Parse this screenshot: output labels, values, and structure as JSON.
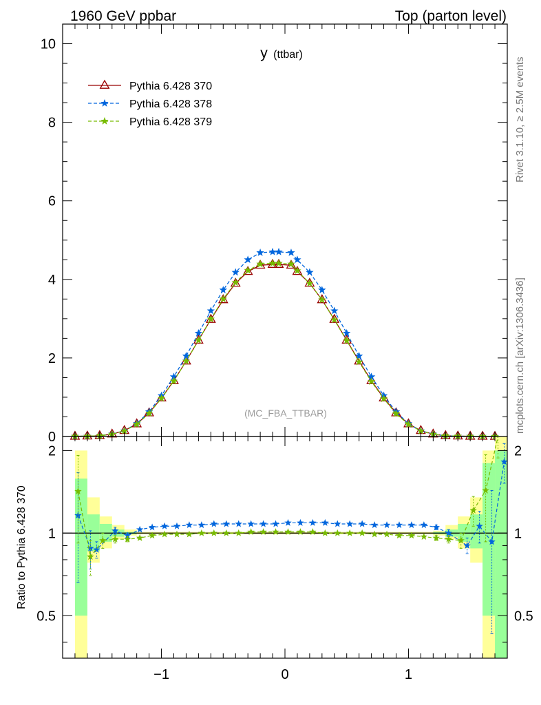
{
  "header": {
    "left": "1960 GeV ppbar",
    "right": "Top (parton level)"
  },
  "side_labels": {
    "rivet": "Rivet 3.1.10, ≥ 2.5M events",
    "mcplots": "mcplots.cern.ch [arXiv:1306.3436]"
  },
  "colors": {
    "series_370": "#990000",
    "series_378": "#0066dd",
    "series_379": "#77bb00",
    "band_yellow": "#ffff99",
    "band_green": "#99ff99"
  },
  "chart_data": [
    {
      "type": "line",
      "title": "y (ttbar)",
      "title_main": "y",
      "title_sub": "(ttbar)",
      "watermark": "(MC_FBA_TTBAR)",
      "xlim": [
        -1.8,
        1.8
      ],
      "ylim": [
        0,
        10.5
      ],
      "yticks": [
        0,
        2,
        4,
        6,
        8,
        10
      ],
      "legend_position": "top-left",
      "x": [
        -1.7,
        -1.6,
        -1.5,
        -1.4,
        -1.3,
        -1.2,
        -1.1,
        -1.0,
        -0.9,
        -0.8,
        -0.7,
        -0.6,
        -0.5,
        -0.4,
        -0.3,
        -0.2,
        -0.1,
        -0.05,
        0.05,
        0.1,
        0.2,
        0.3,
        0.4,
        0.5,
        0.6,
        0.7,
        0.8,
        0.9,
        1.0,
        1.1,
        1.2,
        1.3,
        1.4,
        1.5,
        1.6,
        1.7
      ],
      "series": [
        {
          "name": "Pythia 6.428 370",
          "marker": "open-triangle",
          "line": "solid",
          "values": [
            0.005,
            0.01,
            0.02,
            0.06,
            0.15,
            0.32,
            0.6,
            0.98,
            1.42,
            1.92,
            2.45,
            2.98,
            3.48,
            3.9,
            4.2,
            4.36,
            4.38,
            4.38,
            4.36,
            4.2,
            3.9,
            3.48,
            2.98,
            2.45,
            1.92,
            1.42,
            0.98,
            0.6,
            0.32,
            0.15,
            0.06,
            0.02,
            0.01,
            0.005,
            0.003,
            0.002
          ]
        },
        {
          "name": "Pythia 6.428 378",
          "marker": "star",
          "line": "dashed",
          "values": [
            0.006,
            0.009,
            0.018,
            0.061,
            0.146,
            0.328,
            0.63,
            1.04,
            1.52,
            2.05,
            2.63,
            3.2,
            3.73,
            4.18,
            4.5,
            4.68,
            4.7,
            4.7,
            4.68,
            4.5,
            4.18,
            3.73,
            3.2,
            2.63,
            2.05,
            1.52,
            1.04,
            0.63,
            0.328,
            0.146,
            0.061,
            0.018,
            0.009,
            0.006,
            0.004,
            0.003
          ]
        },
        {
          "name": "Pythia 6.428 379",
          "marker": "star",
          "line": "dashed",
          "values": [
            0.007,
            0.008,
            0.019,
            0.057,
            0.14,
            0.31,
            0.59,
            0.97,
            1.41,
            1.92,
            2.45,
            2.99,
            3.5,
            3.92,
            4.23,
            4.39,
            4.41,
            4.41,
            4.39,
            4.22,
            3.9,
            3.48,
            2.97,
            2.44,
            1.9,
            1.4,
            0.96,
            0.58,
            0.31,
            0.14,
            0.057,
            0.019,
            0.01,
            0.006,
            0.004,
            0.003
          ]
        }
      ]
    },
    {
      "type": "line",
      "ylabel": "Ratio to Pythia 6.428 370",
      "xlim": [
        -1.8,
        1.8
      ],
      "ylim": [
        0.35,
        2.25
      ],
      "yticks": [
        0.5,
        1,
        2
      ],
      "xticks": [
        -1,
        0,
        1
      ],
      "reference_line": 1,
      "bands": {
        "edges": [
          -1.7,
          -1.6,
          -1.5,
          -1.4,
          -1.3,
          -1.2,
          1.2,
          1.3,
          1.4,
          1.5,
          1.6,
          1.7,
          1.8
        ],
        "yellow_low": [
          0.35,
          0.78,
          0.88,
          0.95,
          0.98,
          0.99,
          0.98,
          0.95,
          0.88,
          0.78,
          0.35,
          0.35
        ],
        "yellow_high": [
          2.0,
          1.35,
          1.15,
          1.07,
          1.03,
          1.01,
          1.02,
          1.07,
          1.15,
          1.35,
          2.0,
          2.25
        ],
        "green_low": [
          0.5,
          0.86,
          0.93,
          0.97,
          0.99,
          1.0,
          0.99,
          0.97,
          0.93,
          0.88,
          0.5,
          0.35
        ],
        "green_high": [
          1.58,
          1.17,
          1.08,
          1.03,
          1.01,
          1.0,
          1.01,
          1.03,
          1.08,
          1.17,
          1.8,
          2.0
        ]
      },
      "series": [
        {
          "name": "Pythia 6.428 378",
          "x": [
            -1.675,
            -1.575,
            -1.525,
            -1.375,
            -1.275,
            -1.175,
            -1.075,
            -0.975,
            -0.875,
            -0.775,
            -0.675,
            -0.575,
            -0.475,
            -0.375,
            -0.275,
            -0.175,
            -0.075,
            0.025,
            0.125,
            0.225,
            0.325,
            0.425,
            0.525,
            0.625,
            0.725,
            0.825,
            0.925,
            1.025,
            1.125,
            1.225,
            1.325,
            1.475,
            1.575,
            1.675,
            1.775
          ],
          "values": [
            1.16,
            0.88,
            0.87,
            1.02,
            0.98,
            1.03,
            1.05,
            1.06,
            1.06,
            1.07,
            1.07,
            1.08,
            1.08,
            1.08,
            1.08,
            1.08,
            1.08,
            1.09,
            1.09,
            1.09,
            1.09,
            1.08,
            1.08,
            1.08,
            1.07,
            1.07,
            1.07,
            1.07,
            1.07,
            1.05,
            1.0,
            0.9,
            1.06,
            0.93,
            1.82
          ],
          "err": [
            0.5,
            0.14,
            0.06,
            0.03,
            0.02,
            0.01,
            0.01,
            0.0,
            0.0,
            0.0,
            0.0,
            0.0,
            0.0,
            0.0,
            0.0,
            0.0,
            0.0,
            0.0,
            0.0,
            0.0,
            0.0,
            0.0,
            0.0,
            0.0,
            0.0,
            0.0,
            0.0,
            0.01,
            0.01,
            0.02,
            0.03,
            0.06,
            0.14,
            0.5,
            0.3
          ]
        },
        {
          "name": "Pythia 6.428 379",
          "x": [
            -1.675,
            -1.575,
            -1.475,
            -1.375,
            -1.275,
            -1.175,
            -1.075,
            -0.975,
            -0.875,
            -0.775,
            -0.675,
            -0.575,
            -0.475,
            -0.375,
            -0.275,
            -0.175,
            -0.075,
            0.025,
            0.125,
            0.225,
            0.325,
            0.425,
            0.525,
            0.625,
            0.725,
            0.825,
            0.925,
            1.025,
            1.125,
            1.225,
            1.325,
            1.425,
            1.525,
            1.625,
            1.725
          ],
          "values": [
            1.42,
            0.82,
            0.94,
            0.95,
            0.95,
            0.96,
            0.98,
            0.99,
            0.99,
            0.99,
            1.0,
            1.0,
            1.0,
            1.0,
            1.01,
            1.01,
            1.01,
            1.01,
            1.01,
            1.01,
            1.0,
            1.0,
            1.0,
            1.0,
            0.99,
            0.99,
            0.98,
            0.98,
            0.97,
            0.96,
            0.95,
            0.94,
            1.21,
            1.43,
            2.28
          ],
          "err": [
            0.5,
            0.12,
            0.06,
            0.03,
            0.02,
            0.01,
            0.01,
            0.0,
            0.0,
            0.0,
            0.0,
            0.0,
            0.0,
            0.0,
            0.0,
            0.0,
            0.0,
            0.0,
            0.0,
            0.0,
            0.0,
            0.0,
            0.0,
            0.0,
            0.0,
            0.0,
            0.0,
            0.01,
            0.01,
            0.02,
            0.03,
            0.06,
            0.15,
            0.5,
            0.4
          ]
        }
      ]
    }
  ]
}
